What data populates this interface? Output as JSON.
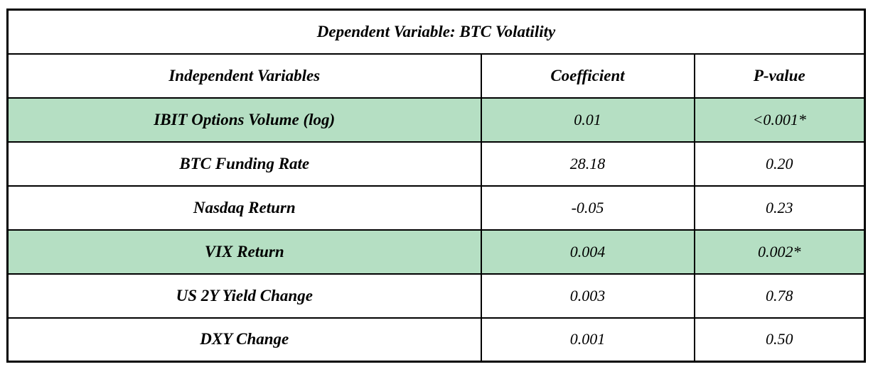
{
  "chart_data": {
    "type": "table",
    "title": "Dependent Variable: BTC Volatility",
    "columns": [
      "Independent Variables",
      "Coefficient",
      "P-value"
    ],
    "rows": [
      {
        "variable": "IBIT Options Volume (log)",
        "coefficient": "0.01",
        "p_value": "<0.001*",
        "highlighted": true
      },
      {
        "variable": "BTC Funding Rate",
        "coefficient": "28.18",
        "p_value": "0.20",
        "highlighted": false
      },
      {
        "variable": "Nasdaq Return",
        "coefficient": "-0.05",
        "p_value": "0.23",
        "highlighted": false
      },
      {
        "variable": "VIX Return",
        "coefficient": "0.004",
        "p_value": "0.002*",
        "highlighted": true
      },
      {
        "variable": "US 2Y Yield Change",
        "coefficient": "0.003",
        "p_value": "0.78",
        "highlighted": false
      },
      {
        "variable": "DXY Change",
        "coefficient": "0.001",
        "p_value": "0.50",
        "highlighted": false
      }
    ],
    "highlighted_row_indices": [
      0,
      3
    ],
    "layout": {
      "text_alignment": "center",
      "grid": "full-borders"
    }
  },
  "colors": {
    "highlight_green": "#b5dfc3",
    "border_black": "#000000",
    "page_background": "#ffffff",
    "text_black": "#000000"
  }
}
